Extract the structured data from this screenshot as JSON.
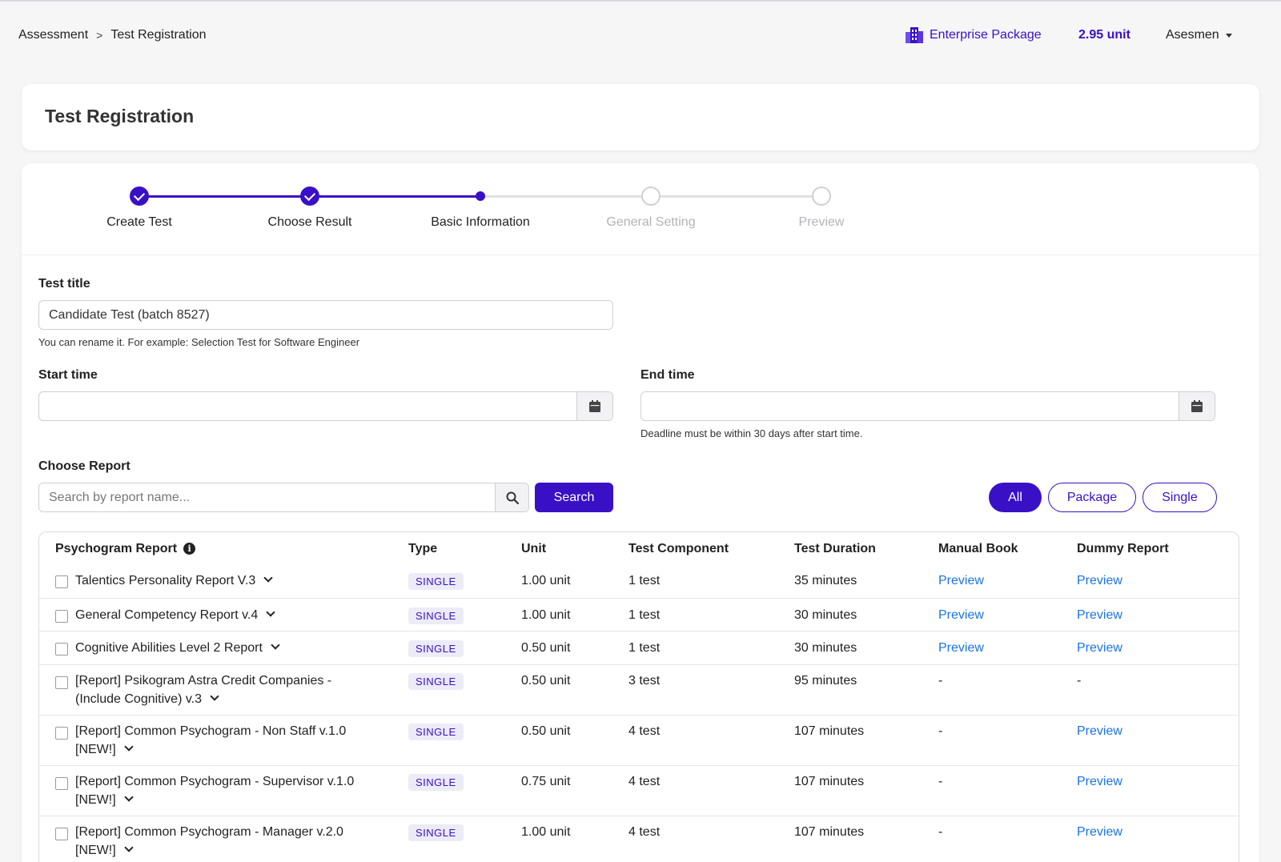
{
  "breadcrumb": {
    "parent": "Assessment",
    "separator": ">",
    "current": "Test Registration"
  },
  "header": {
    "package_label": "Enterprise Package",
    "units": "2.95 unit",
    "user": "Asesmen"
  },
  "page_title": "Test Registration",
  "steps": [
    {
      "label": "Create Test",
      "state": "done"
    },
    {
      "label": "Choose Result",
      "state": "done"
    },
    {
      "label": "Basic Information",
      "state": "current"
    },
    {
      "label": "General Setting",
      "state": "todo"
    },
    {
      "label": "Preview",
      "state": "todo"
    }
  ],
  "form": {
    "test_title_label": "Test title",
    "test_title_value": "Candidate Test (batch 8527)",
    "test_title_hint": "You can rename it. For example: Selection Test for Software Engineer",
    "start_time_label": "Start time",
    "start_time_value": "",
    "end_time_label": "End time",
    "end_time_value": "",
    "end_time_hint": "Deadline must be within 30 days after start time.",
    "choose_report_label": "Choose Report",
    "search_placeholder": "Search by report name...",
    "search_button": "Search",
    "filters": {
      "all": "All",
      "package": "Package",
      "single": "Single",
      "selected": "All"
    }
  },
  "table": {
    "headers": {
      "report": "Psychogram Report",
      "type": "Type",
      "unit": "Unit",
      "component": "Test Component",
      "duration": "Test Duration",
      "manual": "Manual Book",
      "dummy": "Dummy Report"
    },
    "rows": [
      {
        "name1": "Talentics Personality Report V.3",
        "name2": "",
        "type": "SINGLE",
        "unit": "1.00 unit",
        "component": "1 test",
        "duration": "35 minutes",
        "manual": "Preview",
        "dummy": "Preview"
      },
      {
        "name1": "General Competency Report v.4",
        "name2": "",
        "type": "SINGLE",
        "unit": "1.00 unit",
        "component": "1 test",
        "duration": "30 minutes",
        "manual": "Preview",
        "dummy": "Preview"
      },
      {
        "name1": "Cognitive Abilities Level 2 Report",
        "name2": "",
        "type": "SINGLE",
        "unit": "0.50 unit",
        "component": "1 test",
        "duration": "30 minutes",
        "manual": "Preview",
        "dummy": "Preview"
      },
      {
        "name1": "[Report] Psikogram Astra Credit Companies -",
        "name2": "(Include Cognitive) v.3",
        "type": "SINGLE",
        "unit": "0.50 unit",
        "component": "3 test",
        "duration": "95 minutes",
        "manual": "-",
        "dummy": "-"
      },
      {
        "name1": "[Report] Common Psychogram - Non Staff v.1.0",
        "name2": "[NEW!]",
        "type": "SINGLE",
        "unit": "0.50 unit",
        "component": "4 test",
        "duration": "107 minutes",
        "manual": "-",
        "dummy": "Preview"
      },
      {
        "name1": "[Report] Common Psychogram - Supervisor v.1.0",
        "name2": "[NEW!]",
        "type": "SINGLE",
        "unit": "0.75 unit",
        "component": "4 test",
        "duration": "107 minutes",
        "manual": "-",
        "dummy": "Preview"
      },
      {
        "name1": "[Report] Common Psychogram - Manager v.2.0",
        "name2": "[NEW!]",
        "type": "SINGLE",
        "unit": "1.00 unit",
        "component": "4 test",
        "duration": "107 minutes",
        "manual": "-",
        "dummy": "Preview"
      }
    ]
  },
  "colors": {
    "accent": "#3a10c7",
    "link": "#1a73e8",
    "background": "#f6f6f7"
  }
}
